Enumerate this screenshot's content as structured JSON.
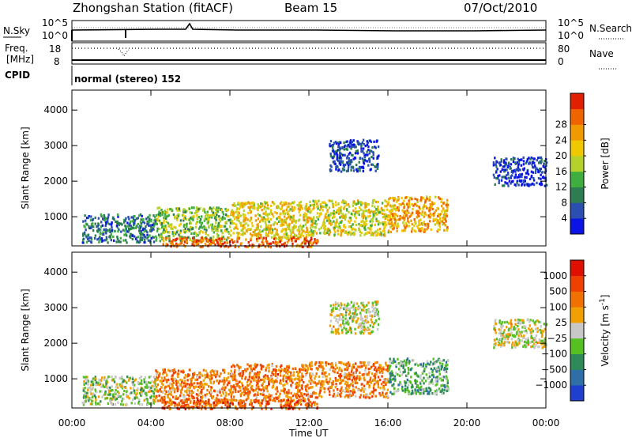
{
  "header": {
    "station": "Zhongshan Station (fitACF)",
    "beam": "Beam 15",
    "date": "07/Oct/2010"
  },
  "top_panels": {
    "nsky_label": "N.Sky",
    "nsky_ticks": [
      "10^5",
      "10^0"
    ],
    "nsearch_label": "N.Search",
    "nsearch_ticks": [
      "10^5",
      "10^0"
    ],
    "freq_label": "Freq.",
    "freq_unit": "[MHz]",
    "freq_ticks": [
      "18",
      "8"
    ],
    "nave_label": "Nave",
    "nave_ticks": [
      "80",
      "0"
    ],
    "cpid_label": "CPID",
    "cpid_text": "normal (stereo) 152"
  },
  "chart_data": [
    {
      "type": "heatmap",
      "name": "power-panel",
      "xlabel": "Time UT",
      "ylabel": "Slant Range [km]",
      "x_ticks": [
        "00:00",
        "04:00",
        "08:00",
        "12:00",
        "16:00",
        "20:00",
        "00:00"
      ],
      "xlim_hours": [
        0,
        24
      ],
      "y_ticks": [
        1000,
        2000,
        3000,
        4000
      ],
      "ylim_km": [
        180,
        4560
      ],
      "colorbar_label": "Power [dB]",
      "colorbar_ticks": [
        "4",
        "8",
        "12",
        "16",
        "20",
        "24",
        "28"
      ],
      "colorbar_colors": [
        "#0a14e6",
        "#2a4fb0",
        "#2c7d4f",
        "#3fae3f",
        "#b5d22a",
        "#f0c800",
        "#f09a00",
        "#f06400",
        "#e02000"
      ],
      "regions": [
        {
          "t0": 0.5,
          "t1": 4.2,
          "r0": 300,
          "r1": 1100,
          "level": 0.25
        },
        {
          "t0": 4.2,
          "t1": 8.0,
          "r0": 350,
          "r1": 1300,
          "level": 0.45
        },
        {
          "t0": 8.0,
          "t1": 12.0,
          "r0": 400,
          "r1": 1450,
          "level": 0.6
        },
        {
          "t0": 12.0,
          "t1": 16.0,
          "r0": 500,
          "r1": 1500,
          "level": 0.55
        },
        {
          "t0": 16.0,
          "t1": 19.0,
          "r0": 600,
          "r1": 1600,
          "level": 0.7
        },
        {
          "t0": 4.5,
          "t1": 12.5,
          "r0": 180,
          "r1": 450,
          "level": 0.85
        },
        {
          "t0": 13.0,
          "t1": 15.5,
          "r0": 2300,
          "r1": 3200,
          "level": 0.15
        },
        {
          "t0": 21.3,
          "t1": 24.0,
          "r0": 1900,
          "r1": 2700,
          "level": 0.1
        }
      ]
    },
    {
      "type": "heatmap",
      "name": "velocity-panel",
      "xlabel": "Time UT",
      "ylabel": "Slant Range [km]",
      "x_ticks": [
        "00:00",
        "04:00",
        "08:00",
        "12:00",
        "16:00",
        "20:00",
        "00:00"
      ],
      "xlim_hours": [
        0,
        24
      ],
      "y_ticks": [
        1000,
        2000,
        3000,
        4000
      ],
      "ylim_km": [
        180,
        4560
      ],
      "colorbar_label": "Velocity [m s",
      "colorbar_label_sup": "-1",
      "colorbar_label_end": "]",
      "colorbar_ticks": [
        "1000",
        "500",
        "100",
        "25",
        "−25",
        "−100",
        "−500",
        "−1000"
      ],
      "colorbar_colors": [
        "#1f3fd0",
        "#2e6fa8",
        "#2e8b57",
        "#55c020",
        "#c8c8c8",
        "#f0a000",
        "#f07000",
        "#f04000",
        "#e01000"
      ],
      "regions": [
        {
          "t0": 0.5,
          "t1": 4.2,
          "r0": 300,
          "r1": 1100,
          "level": 0.45
        },
        {
          "t0": 4.2,
          "t1": 8.0,
          "r0": 350,
          "r1": 1300,
          "level": 0.7
        },
        {
          "t0": 8.0,
          "t1": 12.0,
          "r0": 400,
          "r1": 1450,
          "level": 0.72
        },
        {
          "t0": 12.0,
          "t1": 16.0,
          "r0": 500,
          "r1": 1500,
          "level": 0.7
        },
        {
          "t0": 16.0,
          "t1": 19.0,
          "r0": 600,
          "r1": 1600,
          "level": 0.35
        },
        {
          "t0": 4.5,
          "t1": 12.5,
          "r0": 180,
          "r1": 450,
          "level": 0.78
        },
        {
          "t0": 13.0,
          "t1": 15.5,
          "r0": 2300,
          "r1": 3200,
          "level": 0.5
        },
        {
          "t0": 21.3,
          "t1": 24.0,
          "r0": 1900,
          "r1": 2700,
          "level": 0.5
        }
      ]
    }
  ]
}
